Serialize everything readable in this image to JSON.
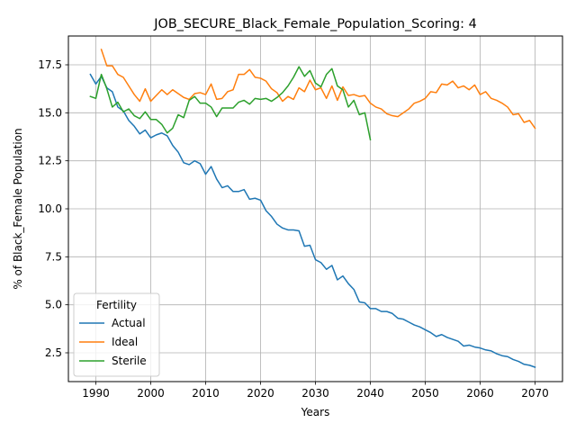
{
  "chart_data": {
    "type": "line",
    "title": "JOB_SECURE_Black_Female_Population_Scoring: 4",
    "xlabel": "Years",
    "ylabel": "% of Black_Female Population",
    "xlim": [
      1985,
      2075
    ],
    "ylim": [
      1.0,
      19.0
    ],
    "xticks": [
      1990,
      2000,
      2010,
      2020,
      2030,
      2040,
      2050,
      2060,
      2070
    ],
    "yticks": [
      2.5,
      5.0,
      7.5,
      10.0,
      12.5,
      15.0,
      17.5
    ],
    "xtick_labels": [
      "1990",
      "2000",
      "2010",
      "2020",
      "2030",
      "2040",
      "2050",
      "2060",
      "2070"
    ],
    "ytick_labels": [
      "2.5",
      "5.0",
      "7.5",
      "10.0",
      "12.5",
      "15.0",
      "17.5"
    ],
    "grid": true,
    "legend": {
      "title": "Fertility",
      "position": "lower-left",
      "entries": [
        "Actual",
        "Ideal",
        "Sterile"
      ]
    },
    "series": [
      {
        "name": "Actual",
        "color": "#1f77b4",
        "x_start": 1989,
        "values": [
          17.0,
          16.5,
          16.9,
          16.3,
          16.1,
          15.3,
          15.1,
          14.6,
          14.3,
          13.9,
          14.1,
          13.7,
          13.85,
          13.95,
          13.8,
          13.3,
          12.95,
          12.4,
          12.3,
          12.5,
          12.35,
          11.8,
          12.2,
          11.55,
          11.1,
          11.2,
          10.9,
          10.9,
          11.0,
          10.5,
          10.55,
          10.45,
          9.9,
          9.6,
          9.2,
          9.0,
          8.9,
          8.9,
          8.85,
          8.05,
          8.1,
          7.35,
          7.2,
          6.85,
          7.05,
          6.3,
          6.5,
          6.1,
          5.8,
          5.15,
          5.1,
          4.8,
          4.8,
          4.65,
          4.65,
          4.55,
          4.3,
          4.25,
          4.1,
          3.95,
          3.85,
          3.7,
          3.55,
          3.35,
          3.45,
          3.3,
          3.2,
          3.1,
          2.85,
          2.9,
          2.8,
          2.75,
          2.65,
          2.6,
          2.45,
          2.35,
          2.3,
          2.15,
          2.05,
          1.9,
          1.85,
          1.75
        ]
      },
      {
        "name": "Ideal",
        "color": "#ff7f0e",
        "x_start": 1991,
        "values": [
          18.3,
          17.45,
          17.45,
          17.0,
          16.85,
          16.4,
          15.95,
          15.6,
          16.25,
          15.6,
          15.9,
          16.2,
          15.95,
          16.2,
          16.0,
          15.8,
          15.7,
          16.0,
          16.05,
          15.95,
          16.5,
          15.7,
          15.75,
          16.1,
          16.2,
          17.0,
          17.0,
          17.25,
          16.85,
          16.8,
          16.65,
          16.25,
          16.05,
          15.6,
          15.85,
          15.7,
          16.3,
          16.1,
          16.7,
          16.2,
          16.3,
          15.75,
          16.4,
          15.65,
          16.35,
          15.9,
          15.95,
          15.85,
          15.9,
          15.5,
          15.3,
          15.2,
          14.95,
          14.85,
          14.8,
          15.0,
          15.2,
          15.5,
          15.6,
          15.75,
          16.1,
          16.05,
          16.5,
          16.45,
          16.65,
          16.3,
          16.4,
          16.2,
          16.45,
          15.95,
          16.1,
          15.75,
          15.65,
          15.5,
          15.3,
          14.9,
          14.95,
          14.5,
          14.6,
          14.2
        ]
      },
      {
        "name": "Sterile",
        "color": "#2ca02c",
        "x_start": 1989,
        "values": [
          15.85,
          15.75,
          17.0,
          16.25,
          15.3,
          15.55,
          15.05,
          15.2,
          14.85,
          14.7,
          15.05,
          14.65,
          14.65,
          14.4,
          13.95,
          14.2,
          14.9,
          14.75,
          15.65,
          15.85,
          15.5,
          15.5,
          15.3,
          14.8,
          15.25,
          15.25,
          15.25,
          15.55,
          15.65,
          15.45,
          15.75,
          15.7,
          15.75,
          15.6,
          15.8,
          16.05,
          16.4,
          16.85,
          17.4,
          16.9,
          17.2,
          16.55,
          16.35,
          17.0,
          17.3,
          16.4,
          16.2,
          15.3,
          15.65,
          14.9,
          15.0,
          13.6
        ]
      }
    ]
  }
}
